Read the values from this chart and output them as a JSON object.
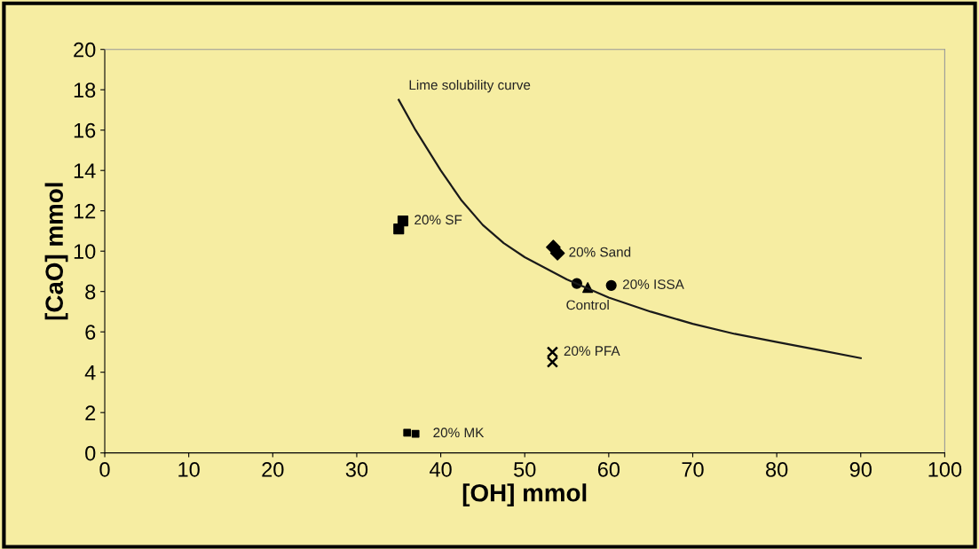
{
  "chart_data": {
    "type": "scatter",
    "xlabel": "[OH] mmol",
    "ylabel": "[CaO] mmol",
    "xlim": [
      0,
      100
    ],
    "xticks": [
      0,
      10,
      20,
      30,
      40,
      50,
      60,
      70,
      80,
      90,
      100
    ],
    "ylim": [
      0,
      20
    ],
    "yticks": [
      0,
      2,
      4,
      6,
      8,
      10,
      12,
      14,
      16,
      18,
      20
    ],
    "grid": false,
    "legend": false,
    "series": [
      {
        "name": "Lime solubility curve",
        "type": "line",
        "color": "#1a1a1a",
        "marker": "none",
        "line_style": "solid",
        "x": [
          35,
          37,
          40,
          42.5,
          45,
          47.5,
          50,
          55,
          60,
          65,
          70,
          75,
          80,
          85,
          90
        ],
        "values": [
          17.5,
          16,
          14,
          12.5,
          11.3,
          10.4,
          9.7,
          8.6,
          7.7,
          7.0,
          6.4,
          5.9,
          5.5,
          5.1,
          4.7
        ]
      },
      {
        "name": "20% SF",
        "color": "#000000",
        "marker": "square",
        "x": [
          35,
          35.5
        ],
        "values": [
          11.1,
          11.5
        ]
      },
      {
        "name": "20% Sand",
        "color": "#000000",
        "marker": "diamond",
        "x": [
          53.4,
          53.9
        ],
        "values": [
          10.2,
          9.9
        ]
      },
      {
        "name": "20% ISSA",
        "color": "#000000",
        "marker": "circle",
        "x": [
          56.2,
          60.3
        ],
        "values": [
          8.4,
          8.3
        ]
      },
      {
        "name": "Control",
        "color": "#000000",
        "marker": "triangle",
        "x": [
          57.5
        ],
        "values": [
          8.2
        ]
      },
      {
        "name": "20% PFA",
        "color": "#000000",
        "marker": "cross",
        "x": [
          53.3,
          53.3
        ],
        "values": [
          5.0,
          4.5
        ]
      },
      {
        "name": "20% MK",
        "color": "#000000",
        "marker": "square",
        "x": [
          36.0,
          37.0
        ],
        "values": [
          1.0,
          0.95
        ]
      }
    ]
  }
}
